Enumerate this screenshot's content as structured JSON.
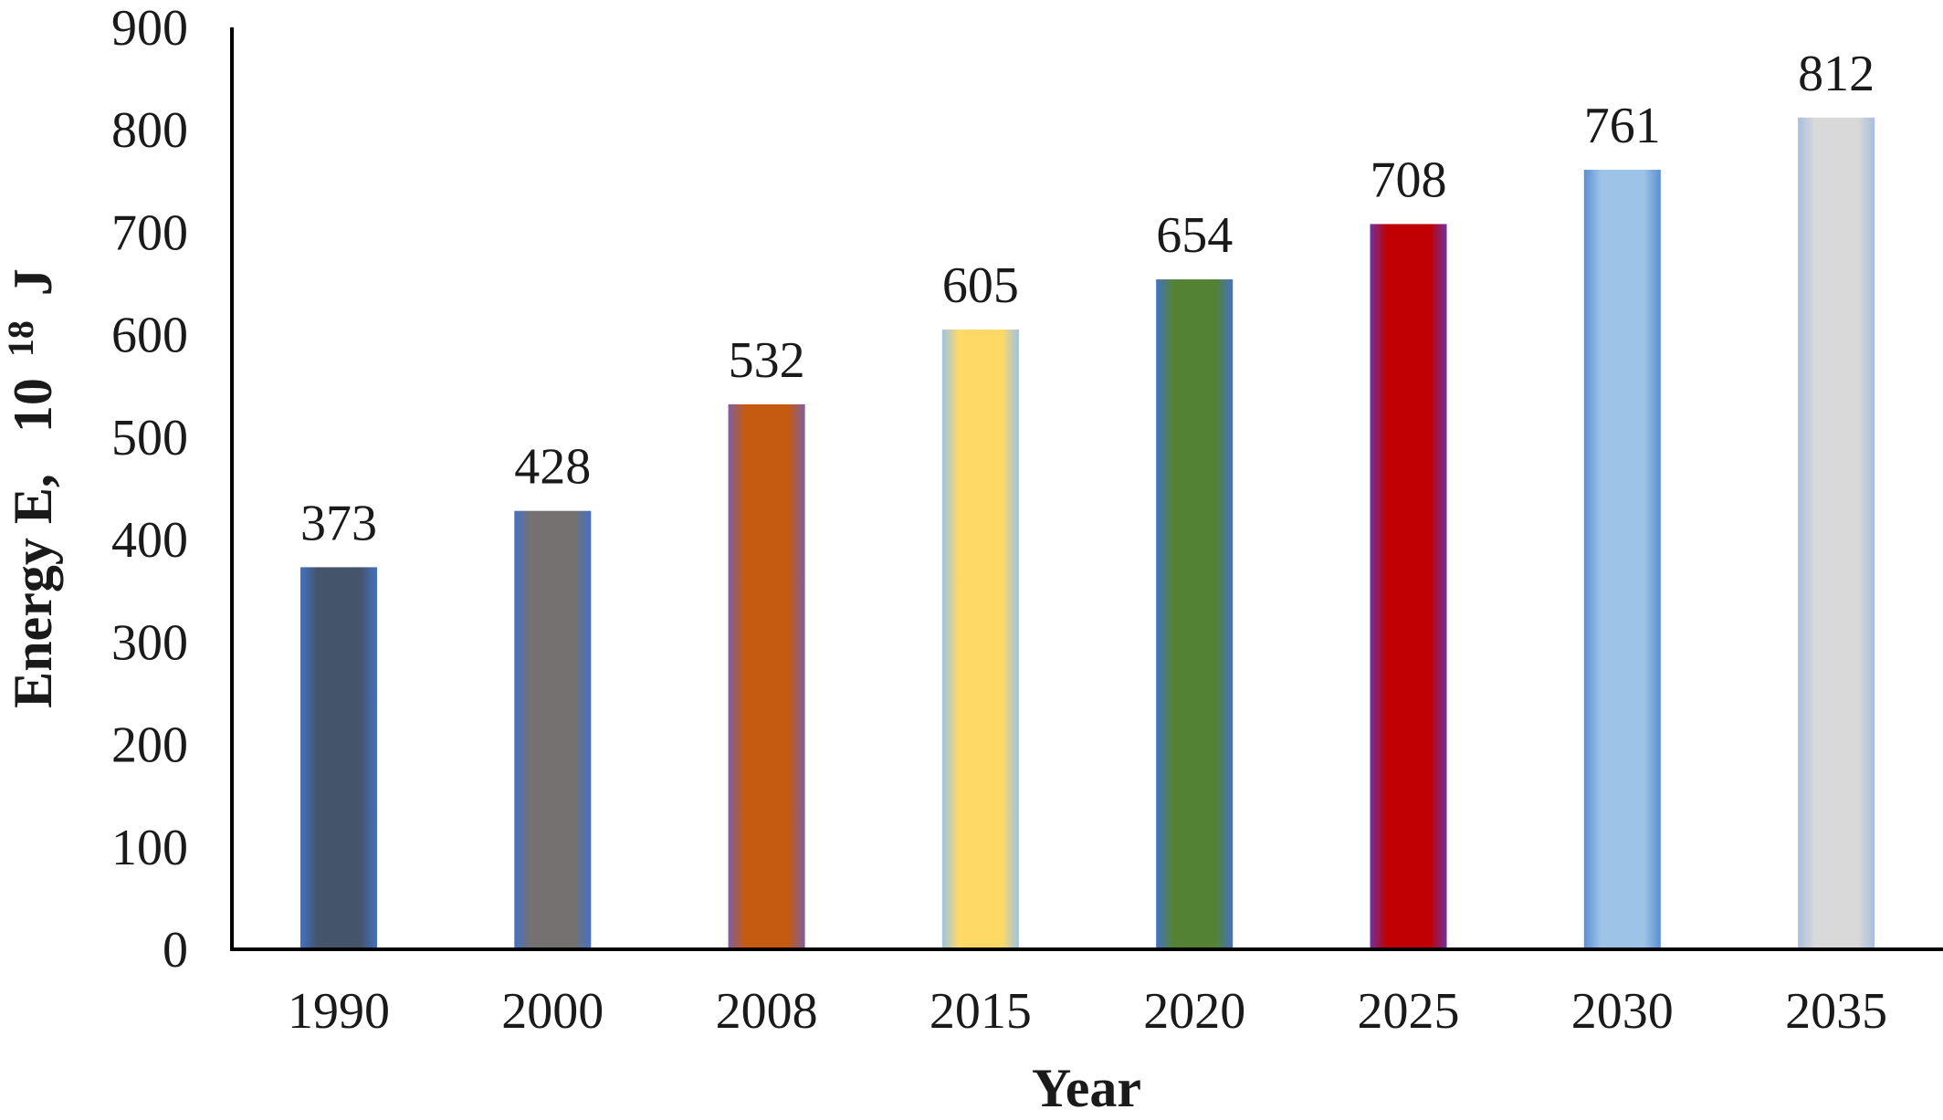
{
  "chart_data": {
    "type": "bar",
    "categories": [
      "1990",
      "2000",
      "2008",
      "2015",
      "2020",
      "2025",
      "2030",
      "2035"
    ],
    "values": [
      373,
      428,
      532,
      605,
      654,
      708,
      761,
      812
    ],
    "data_labels": [
      "373",
      "428",
      "532",
      "605",
      "654",
      "708",
      "761",
      "812"
    ],
    "bar_colors": [
      "#44546a",
      "#767171",
      "#c55a11",
      "#ffd966",
      "#548235",
      "#c00000",
      "#9dc3e6",
      "#d9d9d9"
    ],
    "bar_edge_colors": [
      "#4472c4",
      "#4472c4",
      "#7f5fa0",
      "#9dc3e6",
      "#4472c4",
      "#7030a0",
      "#5b8fd4",
      "#a9bede"
    ],
    "title": "",
    "xlabel": "Year",
    "ylabel": {
      "text": "Energy  E,",
      "unit_base": "10",
      "unit_exp": "18",
      "unit_symbol": "J"
    },
    "ylim": [
      0,
      900
    ],
    "yticks": [
      "0",
      "100",
      "200",
      "300",
      "400",
      "500",
      "600",
      "700",
      "800",
      "900"
    ],
    "grid": false,
    "legend": "none"
  }
}
